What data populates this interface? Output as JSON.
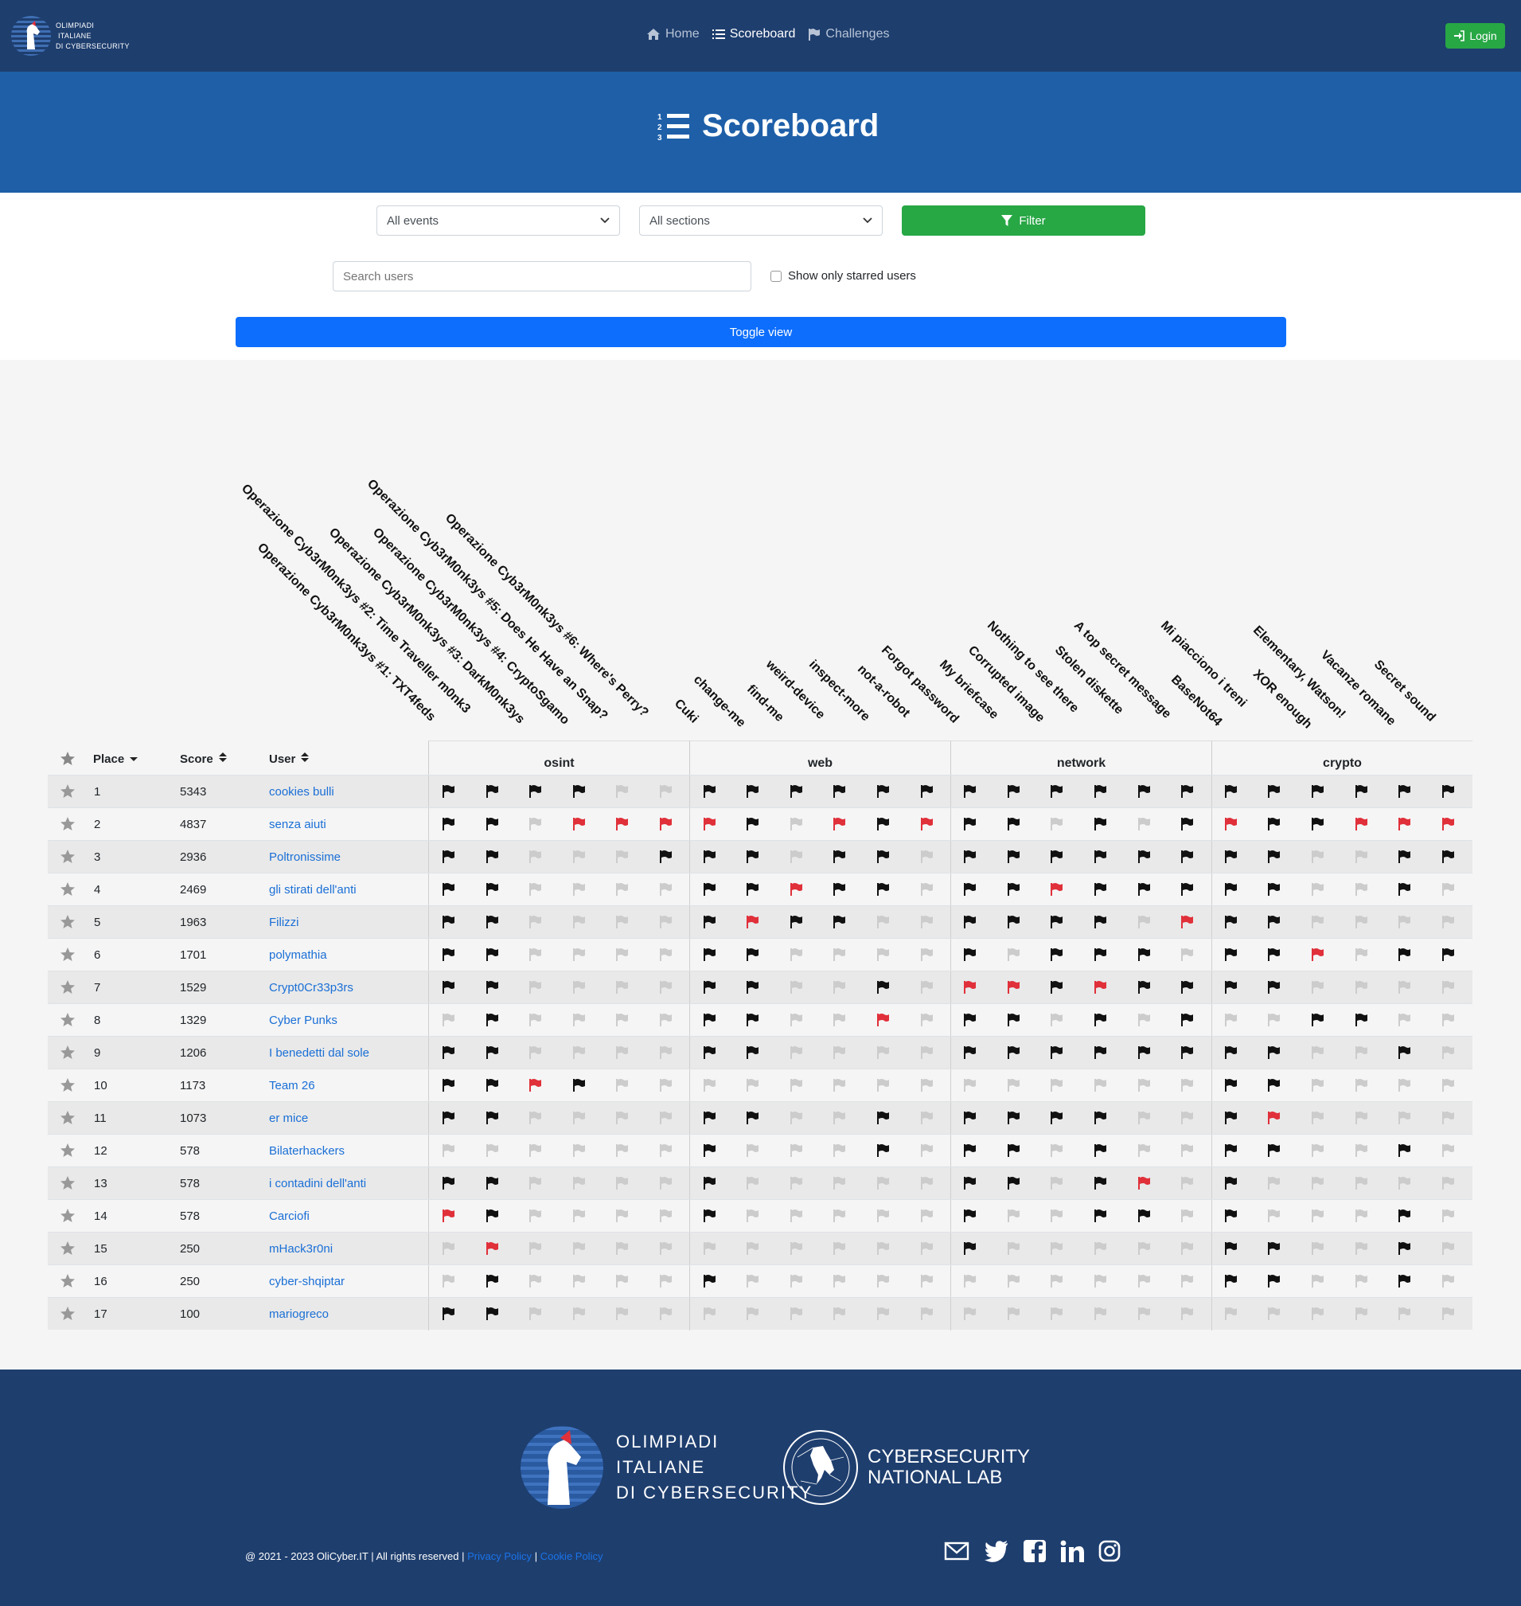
{
  "brand": {
    "line1": "OLIMPIADI",
    "line2": "ITALIANE",
    "line3": "DI CYBERSECURITY"
  },
  "nav": {
    "home": "Home",
    "scoreboard": "Scoreboard",
    "challenges": "Challenges",
    "login": "Login"
  },
  "hero": {
    "title": "Scoreboard"
  },
  "filters": {
    "events": "All events",
    "sections": "All sections",
    "filter": "Filter",
    "search_placeholder": "Search users",
    "starred": "Show only starred users",
    "toggle": "Toggle view"
  },
  "table": {
    "col_place": "Place",
    "col_score": "Score",
    "col_user": "User"
  },
  "sections": [
    "osint",
    "web",
    "network",
    "crypto"
  ],
  "challenges": [
    "Operazione Cyb3rM0nk3ys #1: TXT4feds",
    "Operazione Cyb3rM0nk3ys #2: Time Traveller m0nk3",
    "Operazione Cyb3rM0nk3ys #3: DarkM0nk3ys",
    "Operazione Cyb3rM0nk3ys #4: CryptoSgamo",
    "Operazione Cyb3rM0nk3ys #5: Does He Have an Snap?",
    "Operazione Cyb3rM0nk3ys #6: Where's Perry?",
    "Cuki",
    "change-me",
    "find-me",
    "weird-device",
    "inspect-more",
    "not-a-robot",
    "Forgot password",
    "My briefcase",
    "Corrupted image",
    "Nothing to see there",
    "Stolen diskette",
    "A top secret message",
    "BaseNot64",
    "Mi piacciono i treni",
    "XOR enough",
    "Elementary, Watson!",
    "Vacanze romane",
    "Secret sound"
  ],
  "rows": [
    {
      "place": "1",
      "score": "5343",
      "user": "cookies bulli",
      "flags": "bbbbgg bbbbbb bbbbbb bbbbbb"
    },
    {
      "place": "2",
      "score": "4837",
      "user": "senza aiuti",
      "flags": "bbgrrr rbgrbr bbgbgb rbbrrr"
    },
    {
      "place": "3",
      "score": "2936",
      "user": "Poltronissime",
      "flags": "bbgggb bbgbbg bbbbbb bbggbb"
    },
    {
      "place": "4",
      "score": "2469",
      "user": "gli stirati dell'anti",
      "flags": "bbgggg bbrbbg bbrbbb bbggbg"
    },
    {
      "place": "5",
      "score": "1963",
      "user": "Filizzi",
      "flags": "bbgggg brbbgg bbbbgr bbgggg"
    },
    {
      "place": "6",
      "score": "1701",
      "user": "polymathia",
      "flags": "bbgggg bbgggg bgbbbg bbrgbb"
    },
    {
      "place": "7",
      "score": "1529",
      "user": "Crypt0Cr33p3rs",
      "flags": "bbgggg bbggbg rrbrbb bbgggg"
    },
    {
      "place": "8",
      "score": "1329",
      "user": "Cyber Punks",
      "flags": "gbgggg bbggrg bbgbgb ggbbgg"
    },
    {
      "place": "9",
      "score": "1206",
      "user": "I benedetti dal sole",
      "flags": "bbgggg bbgggg bbbbbb bbggbg"
    },
    {
      "place": "10",
      "score": "1173",
      "user": "Team 26",
      "flags": "bbrbgg gggggg gggggg bbgggg"
    },
    {
      "place": "11",
      "score": "1073",
      "user": "er mice",
      "flags": "bbgggg bbggbg bbbbgg brgggg"
    },
    {
      "place": "12",
      "score": "578",
      "user": "Bilaterhackers",
      "flags": "gggggg bgggbg bbgbgg bbggbg"
    },
    {
      "place": "13",
      "score": "578",
      "user": "i contadini dell'anti",
      "flags": "bbgggg bggggg bbgbrg bggggg"
    },
    {
      "place": "14",
      "score": "578",
      "user": "Carciofi",
      "flags": "rbgggg bggggg bggbbg bgggbg"
    },
    {
      "place": "15",
      "score": "250",
      "user": "mHack3r0ni",
      "flags": "grgggg gggggg bggggg bbggbg"
    },
    {
      "place": "16",
      "score": "250",
      "user": "cyber-shqiptar",
      "flags": "gbgggg bggggg gggggg bbggbg"
    },
    {
      "place": "17",
      "score": "100",
      "user": "mariogreco",
      "flags": "bbgggg gggggg gggggg gggggg"
    }
  ],
  "footer": {
    "olicyber_l1": "OLIMPIADI",
    "olicyber_l2": "ITALIANE",
    "olicyber_l3": "DI CYBERSECURITY",
    "lab_l1": "CYBERSECURITY",
    "lab_l2": "NATIONAL LAB",
    "copyright": "@ 2021 - 2023 OliCyber.IT | All rights reserved |",
    "privacy": "Privacy Policy",
    "cookie": "Cookie Policy",
    "sep": "|"
  },
  "colors": {
    "navbar": "#1e3e6e",
    "hero": "#1e5fa8",
    "flag_black": "#111111",
    "flag_red": "#e0303a",
    "flag_gray": "#cccccc",
    "link": "#1a6fd6"
  }
}
